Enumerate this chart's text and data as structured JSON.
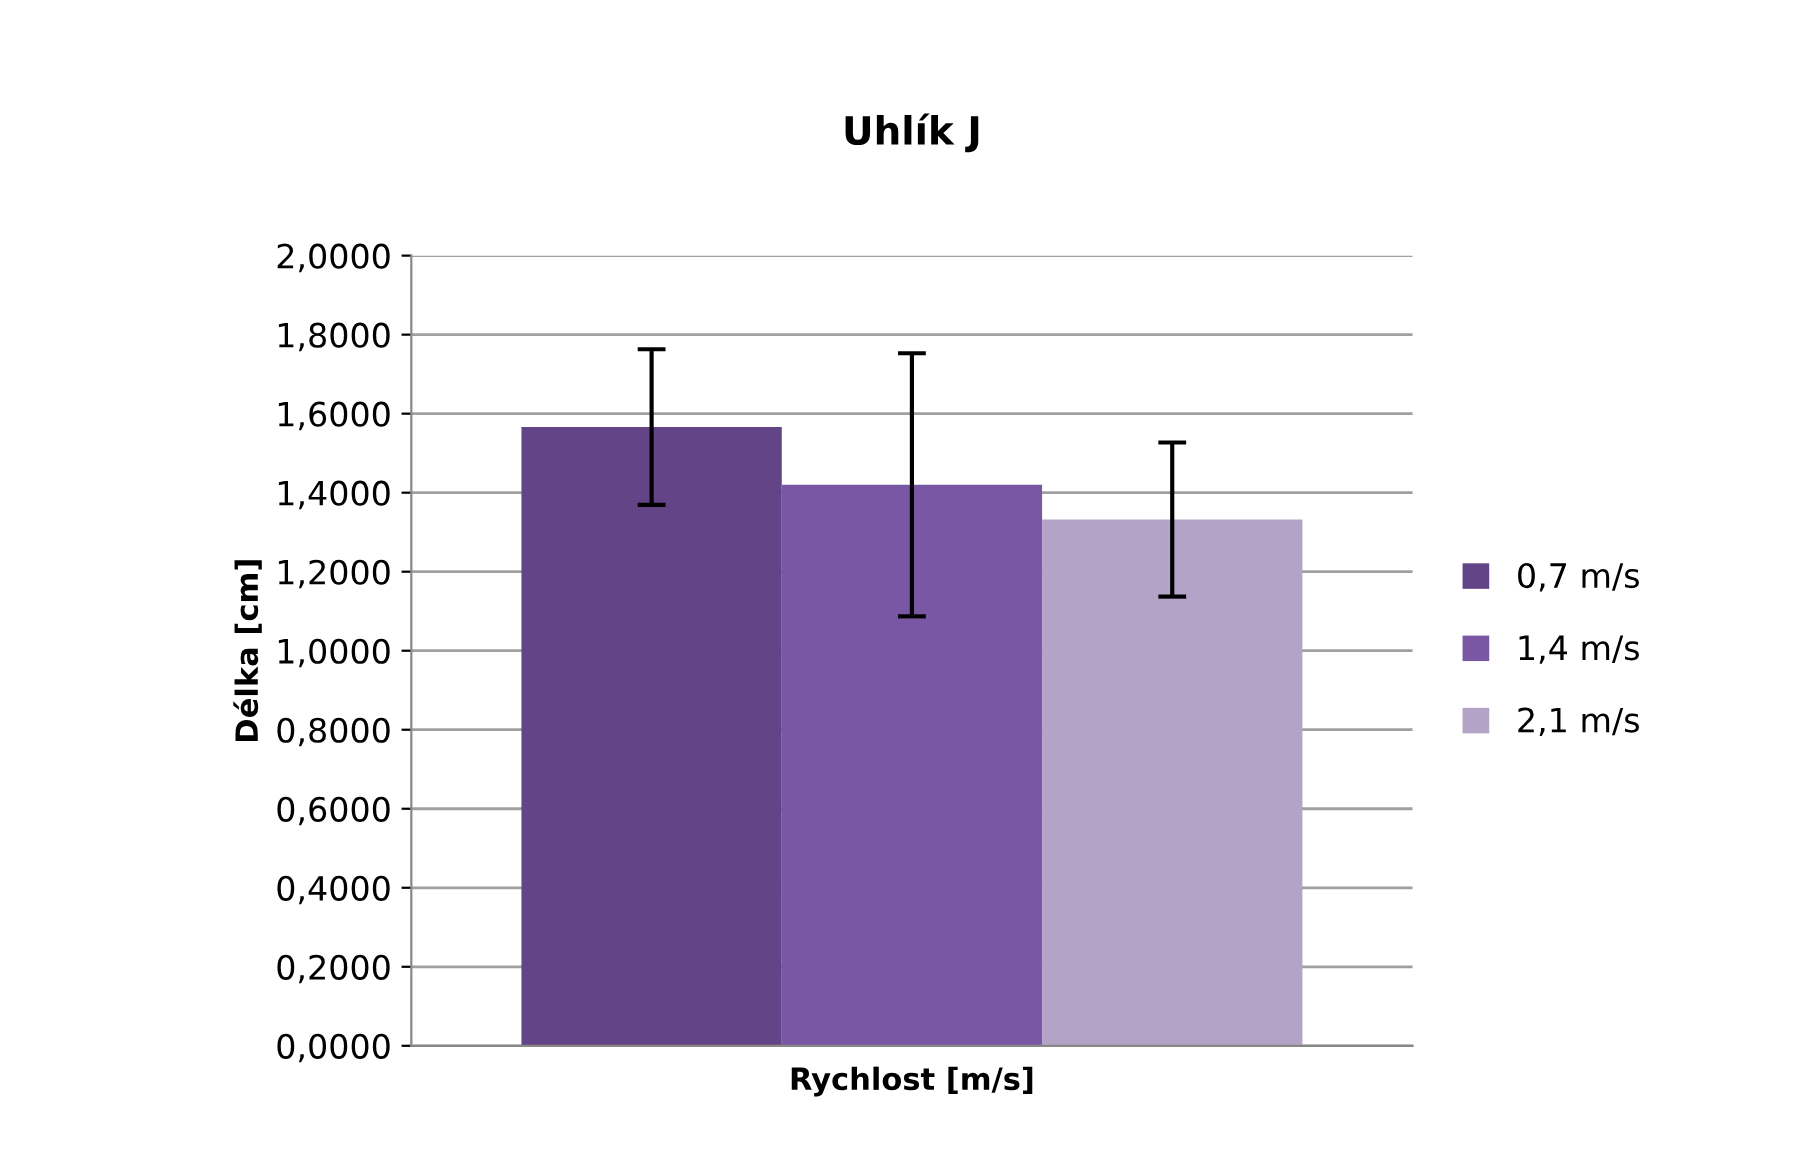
{
  "chart_data": {
    "type": "bar",
    "title": "Uhlík J",
    "xlabel": "Rychlost [m/s]",
    "ylabel": "Délka [cm]",
    "categories": [
      null
    ],
    "series": [
      {
        "name": "0,7 m/s",
        "color": "#634486",
        "values": [
          1.566
        ],
        "errors": [
          0.197
        ]
      },
      {
        "name": "1,4 m/s",
        "color": "#7a57a4",
        "values": [
          1.42
        ],
        "errors": [
          0.333
        ]
      },
      {
        "name": "2,1 m/s",
        "color": "#b3a3c6",
        "values": [
          1.332
        ],
        "errors": [
          0.195
        ]
      }
    ],
    "ylim": [
      0,
      2
    ],
    "yticks": [
      {
        "value": 0,
        "label": "0,0000"
      },
      {
        "value": 0.2,
        "label": "0,2000"
      },
      {
        "value": 0.4,
        "label": "0,4000"
      },
      {
        "value": 0.6,
        "label": "0,6000"
      },
      {
        "value": 0.8,
        "label": "0,8000"
      },
      {
        "value": 1.0,
        "label": "1,0000"
      },
      {
        "value": 1.2,
        "label": "1,2000"
      },
      {
        "value": 1.4,
        "label": "1,4000"
      },
      {
        "value": 1.6,
        "label": "1,6000"
      },
      {
        "value": 1.8,
        "label": "1,8000"
      },
      {
        "value": 2.0,
        "label": "2,0000"
      }
    ],
    "grid": "y",
    "legend": "right"
  }
}
